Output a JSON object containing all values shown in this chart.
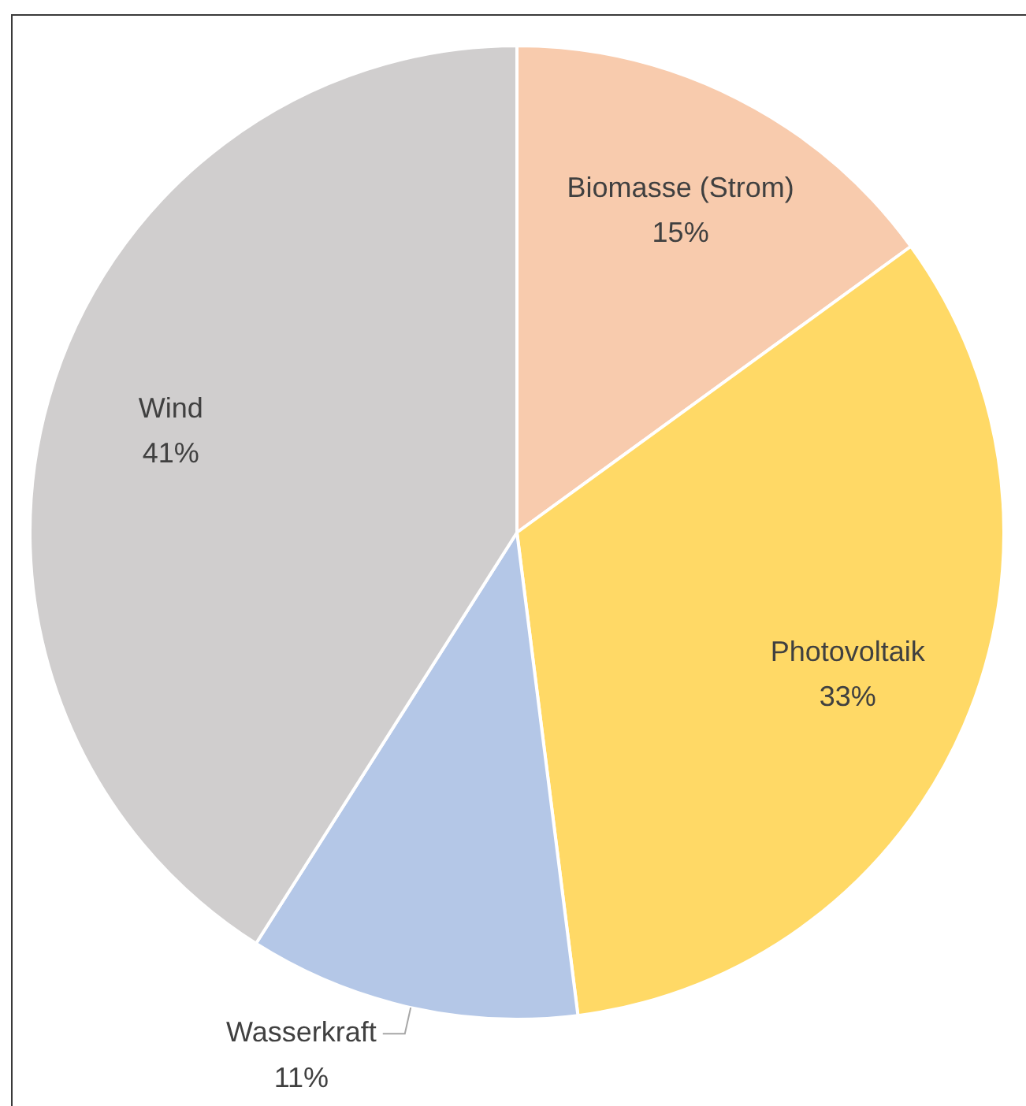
{
  "chart_data": {
    "type": "pie",
    "categories": [
      "Biomasse (Strom)",
      "Photovoltaik",
      "Wasserkraft",
      "Wind"
    ],
    "values": [
      15,
      33,
      11,
      41
    ],
    "colors": [
      "#f8cbad",
      "#ffd966",
      "#b4c7e7",
      "#d0cece"
    ],
    "value_labels": [
      "15%",
      "33%",
      "11%",
      "41%"
    ]
  }
}
